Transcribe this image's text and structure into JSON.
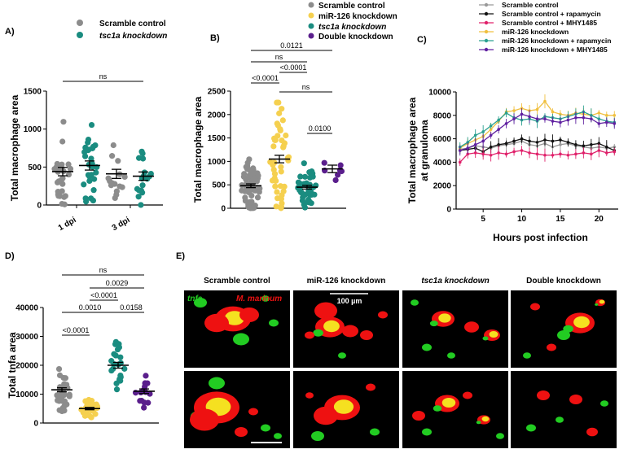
{
  "colors": {
    "scramble": "#8c8c8c",
    "mir126": "#f5d04f",
    "tsc1a": "#1a8c80",
    "double": "#5a1e8c",
    "c_scramble": "#999999",
    "c_rapa": "#111111",
    "c_mhy": "#e0206a",
    "c_mir": "#f0c040",
    "c_mirrapa": "#2aa090",
    "c_mirmhy": "#6020a0",
    "green": "#22cc22",
    "red": "#ee1111"
  },
  "panels": {
    "A": "A)",
    "B": "B)",
    "C": "C)",
    "D": "D)",
    "E": "E)"
  },
  "legendA": [
    "Scramble control",
    "tsc1a knockdown"
  ],
  "legendB": [
    "Scramble control",
    "miR-126 knockdown",
    "tsc1a knockdown",
    "Double knockdown"
  ],
  "legendC": [
    "Scramble control",
    "Scramble control + rapamycin",
    "Scramble control + MHY1485",
    "miR-126 knockdown",
    "miR-126 knockdown + rapamycin",
    "miR-126 knockdown + MHY1485"
  ],
  "imageTitles": [
    "Scramble control",
    "miR-126 knockdown",
    "tsc1a knockdown",
    "Double knockdown"
  ],
  "imageLabels": {
    "tnfa": "tnfa",
    "mm": "M. marinum",
    "scale": "100 µm"
  },
  "chart_data": [
    {
      "panel": "A",
      "type": "scatter",
      "ylabel": "Total macrophage area",
      "ylim": [
        0,
        1500
      ],
      "yticks": [
        "0",
        "500",
        "1000",
        "1500"
      ],
      "xticks": [
        "1 dpi",
        "3 dpi"
      ],
      "groups": [
        {
          "series": "Scramble control",
          "x": "1 dpi",
          "mean": 440,
          "sem": 55
        },
        {
          "series": "tsc1a knockdown",
          "x": "1 dpi",
          "mean": 520,
          "sem": 60
        },
        {
          "series": "Scramble control",
          "x": "3 dpi",
          "mean": 410,
          "sem": 60
        },
        {
          "series": "tsc1a knockdown",
          "x": "3 dpi",
          "mean": 380,
          "sem": 55
        }
      ],
      "annotations": [
        {
          "text": "ns",
          "between": [
            "1 dpi",
            "3 dpi"
          ]
        }
      ]
    },
    {
      "panel": "B",
      "type": "scatter",
      "ylabel": "Total macrophage area",
      "ylim": [
        0,
        2500
      ],
      "yticks": [
        "0",
        "500",
        "1000",
        "1500",
        "2000",
        "2500"
      ],
      "groups": [
        {
          "series": "Scramble control",
          "mean": 480,
          "sem": 40
        },
        {
          "series": "miR-126 knockdown",
          "mean": 1050,
          "sem": 80
        },
        {
          "series": "tsc1a knockdown",
          "mean": 450,
          "sem": 40
        },
        {
          "series": "Double knockdown",
          "mean": 840,
          "sem": 80
        }
      ],
      "annotations": [
        {
          "text": "<0.0001",
          "between": [
            1,
            2
          ]
        },
        {
          "text": "ns",
          "between": [
            1,
            3
          ]
        },
        {
          "text": "0.0121",
          "between": [
            1,
            4
          ]
        },
        {
          "text": "<0.0001",
          "between": [
            2,
            3
          ]
        },
        {
          "text": "ns",
          "between": [
            2,
            4
          ]
        },
        {
          "text": "0.0100",
          "between": [
            3,
            4
          ]
        }
      ]
    },
    {
      "panel": "C",
      "type": "line",
      "xlabel": "Hours post infection",
      "ylabel": "Total macrophage area at granuloma",
      "xlim": [
        1.5,
        22.5
      ],
      "xticks": [
        "5",
        "10",
        "15",
        "20"
      ],
      "ylim": [
        0,
        10000
      ],
      "yticks": [
        "0",
        "2000",
        "4000",
        "6000",
        "8000",
        "10000"
      ],
      "x": [
        2,
        3,
        4,
        5,
        6,
        7,
        8,
        9,
        10,
        11,
        12,
        13,
        14,
        15,
        16,
        17,
        18,
        19,
        20,
        21,
        22
      ],
      "series": [
        {
          "name": "Scramble control",
          "values": [
            5100,
            5200,
            5400,
            5300,
            5200,
            5400,
            5500,
            5600,
            5800,
            5500,
            5400,
            5600,
            5300,
            5500,
            5600,
            5400,
            5300,
            5200,
            5300,
            5200,
            5300
          ]
        },
        {
          "name": "Scramble control + rapamycin",
          "values": [
            5000,
            5100,
            5200,
            4900,
            5300,
            5500,
            5600,
            5800,
            6000,
            5800,
            5700,
            5900,
            5800,
            5900,
            5700,
            5500,
            5400,
            5500,
            5600,
            5300,
            5000
          ]
        },
        {
          "name": "Scramble control + MHY1485",
          "values": [
            4000,
            4700,
            4800,
            4700,
            4600,
            4800,
            4700,
            4900,
            5000,
            4800,
            4700,
            4600,
            4600,
            4700,
            4600,
            4700,
            4800,
            4700,
            5000,
            4800,
            4900
          ]
        },
        {
          "name": "miR-126 knockdown",
          "values": [
            5200,
            5600,
            5900,
            6200,
            6800,
            7500,
            8300,
            8400,
            8600,
            8400,
            8500,
            9200,
            8300,
            8100,
            8000,
            8200,
            8100,
            8000,
            8200,
            8000,
            8000
          ]
        },
        {
          "name": "miR-126 knockdown + rapamycin",
          "values": [
            5300,
            5700,
            6300,
            6600,
            7100,
            7600,
            8200,
            7800,
            7600,
            7700,
            7500,
            7900,
            7800,
            7700,
            7900,
            8100,
            8300,
            8000,
            7700,
            7500,
            7400
          ]
        },
        {
          "name": "miR-126 knockdown + MHY1485",
          "values": [
            5000,
            5200,
            5500,
            5800,
            6300,
            6800,
            7300,
            7700,
            8100,
            7900,
            7700,
            7700,
            7500,
            7400,
            7600,
            7800,
            7800,
            7700,
            7300,
            7400,
            7300
          ]
        }
      ]
    },
    {
      "panel": "D",
      "type": "scatter",
      "ylabel": "Total tnfa area",
      "ylim": [
        0,
        40000
      ],
      "yticks": [
        "0",
        "10000",
        "20000",
        "30000",
        "40000"
      ],
      "groups": [
        {
          "series": "Scramble control",
          "mean": 11500,
          "sem": 700
        },
        {
          "series": "miR-126 knockdown",
          "mean": 5000,
          "sem": 400
        },
        {
          "series": "tsc1a knockdown",
          "mean": 20000,
          "sem": 1000
        },
        {
          "series": "Double knockdown",
          "mean": 11000,
          "sem": 800
        }
      ],
      "annotations": [
        {
          "text": "<0.0001",
          "between": [
            1,
            2
          ]
        },
        {
          "text": "0.0010",
          "between": [
            1,
            3
          ]
        },
        {
          "text": "<0.0001",
          "between": [
            2,
            3
          ]
        },
        {
          "text": "0.0029",
          "between": [
            2,
            4
          ]
        },
        {
          "text": "ns",
          "between": [
            1,
            4
          ]
        },
        {
          "text": "0.0158",
          "between": [
            3,
            4
          ]
        }
      ]
    }
  ]
}
